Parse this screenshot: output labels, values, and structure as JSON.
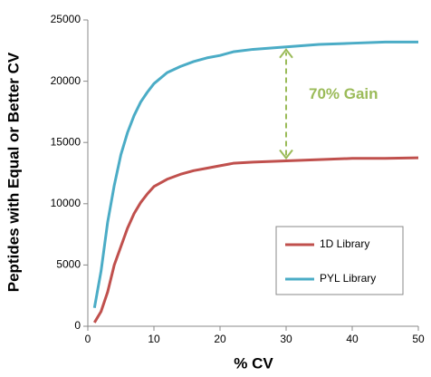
{
  "chart_data": {
    "type": "line",
    "x_label": "% CV",
    "y_label": "Peptides with Equal or Better CV",
    "annotation": "70% Gain",
    "x": [
      1,
      2,
      3,
      4,
      5,
      6,
      7,
      8,
      9,
      10,
      12,
      14,
      16,
      18,
      20,
      22,
      25,
      30,
      35,
      40,
      45,
      50
    ],
    "series": [
      {
        "name": "1D Library",
        "color": "#c0504d",
        "values": [
          300,
          1200,
          2800,
          5000,
          6500,
          8000,
          9200,
          10100,
          10800,
          11400,
          12000,
          12400,
          12700,
          12900,
          13100,
          13300,
          13400,
          13500,
          13600,
          13700,
          13700,
          13750
        ]
      },
      {
        "name": "PYL Library",
        "color": "#4bacc6",
        "values": [
          1500,
          4500,
          8500,
          11500,
          14000,
          15800,
          17200,
          18300,
          19100,
          19800,
          20700,
          21200,
          21600,
          21900,
          22100,
          22400,
          22600,
          22800,
          23000,
          23100,
          23200,
          23200
        ]
      }
    ],
    "xlim": [
      0,
      50
    ],
    "xticks": [
      0,
      10,
      20,
      30,
      40,
      50
    ],
    "ylim": [
      0,
      25000
    ],
    "yticks": [
      0,
      5000,
      10000,
      15000,
      20000,
      25000
    ],
    "grid": false,
    "legend": "lower right",
    "annotation_color": "#9bbb59"
  }
}
